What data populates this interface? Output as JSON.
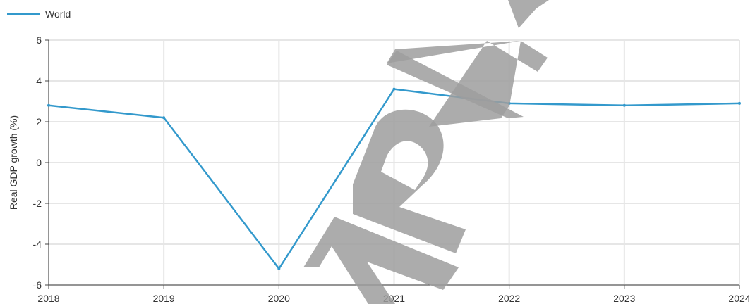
{
  "chart_data": {
    "type": "line",
    "title": "",
    "xlabel": "",
    "ylabel": "Real GDP growth (%)",
    "x": [
      "2018",
      "2019",
      "2020",
      "2021",
      "2022",
      "2023",
      "2024"
    ],
    "series": [
      {
        "name": "World",
        "color": "#3399cc",
        "values": [
          2.8,
          2.2,
          -5.2,
          3.6,
          2.9,
          2.8,
          2.9
        ]
      }
    ],
    "yticks": [
      6,
      4,
      2,
      0,
      -2,
      -4,
      -6
    ],
    "ylim": [
      -6,
      6
    ],
    "grid": true,
    "legend": "top-left"
  },
  "watermark": {
    "text": "SAMPLE",
    "color": "#9e9e9e"
  }
}
